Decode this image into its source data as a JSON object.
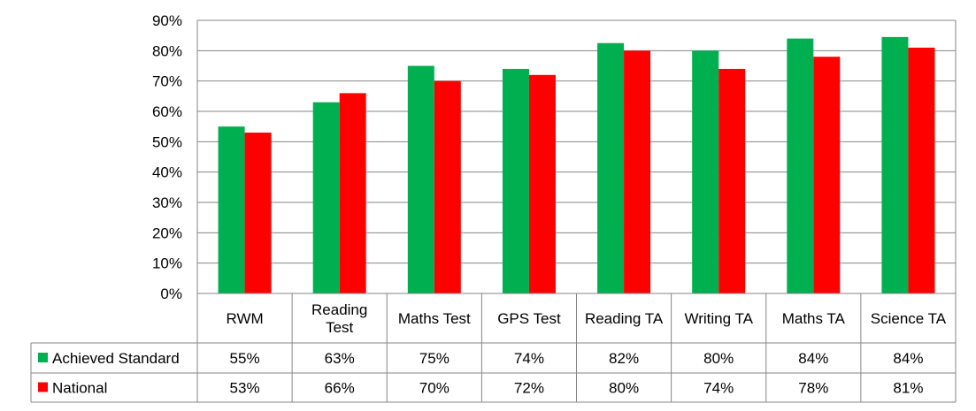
{
  "chart_data": {
    "type": "bar",
    "title": "",
    "xlabel": "",
    "ylabel": "",
    "ylim": [
      0,
      90
    ],
    "y_ticks": [
      "0%",
      "10%",
      "20%",
      "30%",
      "40%",
      "50%",
      "60%",
      "70%",
      "80%",
      "90%"
    ],
    "grid": true,
    "legend": "data-table",
    "categories": [
      [
        "RWM"
      ],
      [
        "Reading",
        "Test"
      ],
      [
        "Maths Test"
      ],
      [
        "GPS Test"
      ],
      [
        "Reading TA"
      ],
      [
        "Writing TA"
      ],
      [
        "Maths TA"
      ],
      [
        "Science TA"
      ]
    ],
    "series": [
      {
        "name": "Achieved Standard",
        "color": "#00b050",
        "values": [
          55,
          63,
          75,
          74,
          82.5,
          80,
          84,
          84.5
        ],
        "labels": [
          "55%",
          "63%",
          "75%",
          "74%",
          "82%",
          "80%",
          "84%",
          "84%"
        ]
      },
      {
        "name": "National",
        "color": "#ff0000",
        "values": [
          53,
          66,
          70,
          72,
          80,
          74,
          78,
          81
        ],
        "labels": [
          "53%",
          "66%",
          "70%",
          "72%",
          "80%",
          "74%",
          "78%",
          "81%"
        ]
      }
    ]
  }
}
